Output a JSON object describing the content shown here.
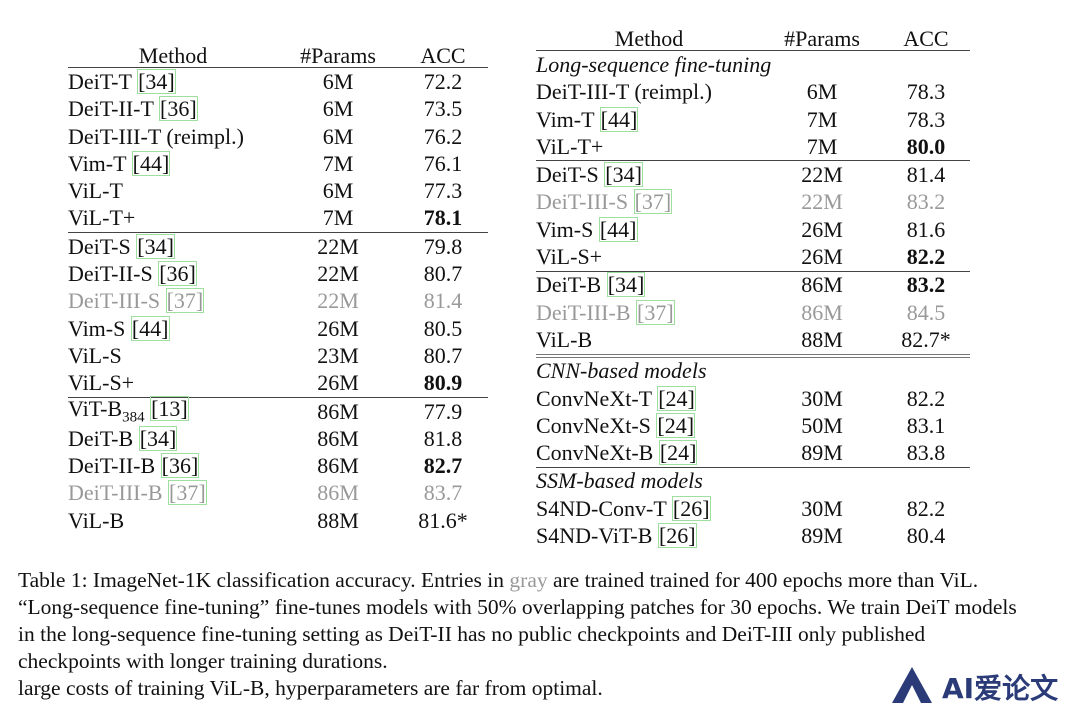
{
  "left_table": {
    "headers": [
      "Method",
      "#Params",
      "ACC"
    ],
    "rows": [
      {
        "name": "DeiT-T ",
        "ref": "[34]",
        "params": "6M",
        "acc": "72.2"
      },
      {
        "name": "DeiT-II-T ",
        "ref": "[36]",
        "params": "6M",
        "acc": "73.5"
      },
      {
        "name": "DeiT-III-T (reimpl.)",
        "params": "6M",
        "acc": "76.2"
      },
      {
        "name": "Vim-T ",
        "ref": "[44]",
        "params": "7M",
        "acc": "76.1"
      },
      {
        "name": "ViL-T",
        "params": "6M",
        "acc": "77.3"
      },
      {
        "name": "ViL-T+",
        "params": "7M",
        "acc": "78.1",
        "bold": true
      },
      {
        "name": "DeiT-S ",
        "ref": "[34]",
        "params": "22M",
        "acc": "79.8",
        "sep": true
      },
      {
        "name": "DeiT-II-S ",
        "ref": "[36]",
        "params": "22M",
        "acc": "80.7"
      },
      {
        "name": "DeiT-III-S ",
        "ref": "[37]",
        "params": "22M",
        "acc": "81.4",
        "gray": true
      },
      {
        "name": "Vim-S ",
        "ref": "[44]",
        "params": "26M",
        "acc": "80.5"
      },
      {
        "name": "ViL-S",
        "params": "23M",
        "acc": "80.7"
      },
      {
        "name": "ViL-S+",
        "params": "26M",
        "acc": "80.9",
        "bold": true
      },
      {
        "name": "ViT-B",
        "sub": "384",
        "ref": "[13]",
        "params": "86M",
        "acc": "77.9",
        "sep": true
      },
      {
        "name": "DeiT-B ",
        "ref": "[34]",
        "params": "86M",
        "acc": "81.8"
      },
      {
        "name": "DeiT-II-B ",
        "ref": "[36]",
        "params": "86M",
        "acc": "82.7",
        "bold": true
      },
      {
        "name": "DeiT-III-B ",
        "ref": "[37]",
        "params": "86M",
        "acc": "83.7",
        "gray": true
      },
      {
        "name": "ViL-B",
        "params": "88M",
        "acc": "81.6*"
      }
    ]
  },
  "right_table": {
    "headers": [
      "Method",
      "#Params",
      "ACC"
    ],
    "rows": [
      {
        "section": "Long-sequence fine-tuning"
      },
      {
        "name": "DeiT-III-T (reimpl.)",
        "params": "6M",
        "acc": "78.3"
      },
      {
        "name": "Vim-T ",
        "ref": "[44]",
        "params": "7M",
        "acc": "78.3"
      },
      {
        "name": "ViL-T+",
        "params": "7M",
        "acc": "80.0",
        "bold": true
      },
      {
        "name": "DeiT-S ",
        "ref": "[34]",
        "params": "22M",
        "acc": "81.4",
        "sep": true
      },
      {
        "name": "DeiT-III-S ",
        "ref": "[37]",
        "params": "22M",
        "acc": "83.2",
        "gray": true
      },
      {
        "name": "Vim-S ",
        "ref": "[44]",
        "params": "26M",
        "acc": "81.6"
      },
      {
        "name": "ViL-S+",
        "params": "26M",
        "acc": "82.2",
        "bold": true
      },
      {
        "name": "DeiT-B ",
        "ref": "[34]",
        "params": "86M",
        "acc": "83.2",
        "bold": true,
        "sep": true
      },
      {
        "name": "DeiT-III-B ",
        "ref": "[37]",
        "params": "86M",
        "acc": "84.5",
        "gray": true
      },
      {
        "name": "ViL-B",
        "params": "88M",
        "acc": "82.7*"
      },
      {
        "section": "CNN-based models",
        "dsep": true
      },
      {
        "name": "ConvNeXt-T ",
        "ref": "[24]",
        "params": "30M",
        "acc": "82.2"
      },
      {
        "name": "ConvNeXt-S ",
        "ref": "[24]",
        "params": "50M",
        "acc": "83.1"
      },
      {
        "name": "ConvNeXt-B ",
        "ref": "[24]",
        "params": "89M",
        "acc": "83.8"
      },
      {
        "section": "SSM-based models",
        "sep": true
      },
      {
        "name": "S4ND-Conv-T ",
        "ref": "[26]",
        "params": "30M",
        "acc": "82.2"
      },
      {
        "name": "S4ND-ViT-B ",
        "ref": "[26]",
        "params": "89M",
        "acc": "80.4"
      }
    ]
  },
  "caption": {
    "part1": "Table 1: ImageNet-1K classification accuracy.  Entries in ",
    "gray_word": "gray",
    "part2": " are trained trained for 400 epochs more than ViL. “Long-sequence fine-tuning” fine-tunes models with 50% overlapping patches for 30 epochs. We train DeiT models in the long-sequence fine-tuning setting as DeiT-II has no public checkpoints and DeiT-III only published checkpoints with longer training durations.",
    "part3": "large costs of training ViL-B, hyperparameters are far from optimal."
  },
  "watermark": {
    "text": "AI爱论文",
    "logo_color": "#2a3b78",
    "icon": "stylized-a-logo-icon"
  }
}
